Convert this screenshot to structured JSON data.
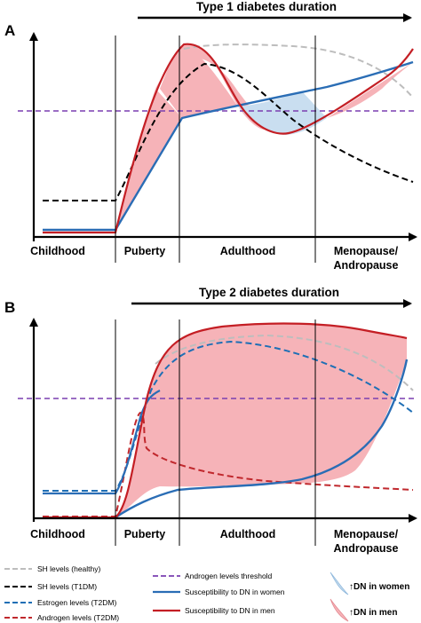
{
  "panel_a": {
    "letter": "A",
    "duration_label": "Type 1 diabetes duration",
    "stages": [
      "Childhood",
      "Puberty",
      "Adulthood",
      "Menopause/",
      "Andropause"
    ]
  },
  "panel_b": {
    "letter": "B",
    "duration_label": "Type 2 diabetes duration",
    "stages": [
      "Childhood",
      "Puberty",
      "Adulthood",
      "Menopause/",
      "Andropause"
    ]
  },
  "legend": {
    "sh_healthy": "SH levels (healthy)",
    "sh_t1dm": "SH levels (T1DM)",
    "estrogen_t2dm": "Estrogen levels (T2DM)",
    "androgen_t2dm": "Androgen levels (T2DM)",
    "androgen_threshold": "Androgen levels threshold",
    "susc_women": "Susceptibility to DN in women",
    "susc_men": "Susceptibility to DN in men",
    "dn_women": "↑DN in women",
    "dn_men": "↑DN in men"
  },
  "colors": {
    "sh_healthy": "#bdbdbd",
    "sh_t1dm": "#000000",
    "estrogen_t2dm": "#1f6fb5",
    "androgen_t2dm": "#c0282d",
    "androgen_threshold": "#7a3fb0",
    "susc_women": "#2a6db5",
    "susc_men": "#c41e24",
    "fill_women": "#c9def0",
    "fill_men": "#f6b3b8"
  }
}
